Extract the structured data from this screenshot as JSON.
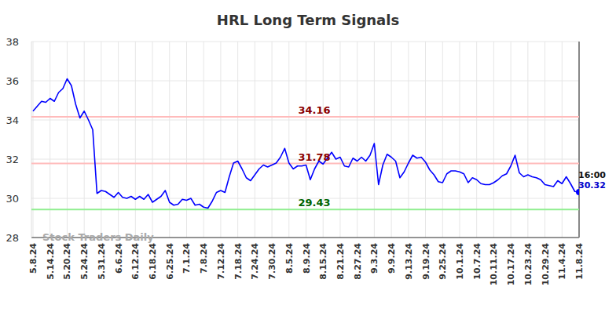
{
  "chart_data": {
    "type": "line",
    "title": "HRL Long Term Signals",
    "categories": [
      "5.8.24",
      null,
      null,
      null,
      "5.14.24",
      null,
      null,
      null,
      "5.20.24",
      null,
      null,
      null,
      "5.24.24",
      null,
      null,
      null,
      "5.31.24",
      null,
      null,
      null,
      "6.6.24",
      null,
      null,
      null,
      "6.12.24",
      null,
      null,
      null,
      "6.18.24",
      null,
      null,
      null,
      "6.25.24",
      null,
      null,
      null,
      "7.1.24",
      null,
      null,
      null,
      "7.8.24",
      null,
      null,
      null,
      "7.12.24",
      null,
      null,
      null,
      "7.18.24",
      null,
      null,
      null,
      "7.24.24",
      null,
      null,
      null,
      "7.30.24",
      null,
      null,
      null,
      "8.5.24",
      null,
      null,
      null,
      "8.9.24",
      null,
      null,
      null,
      "8.15.24",
      null,
      null,
      null,
      "8.21.24",
      null,
      null,
      null,
      "8.27.24",
      null,
      null,
      null,
      "9.3.24",
      null,
      null,
      null,
      "9.9.24",
      null,
      null,
      null,
      "9.13.24",
      null,
      null,
      null,
      "9.19.24",
      null,
      null,
      null,
      "9.25.24",
      null,
      null,
      null,
      "10.1.24",
      null,
      null,
      null,
      "10.7.24",
      null,
      null,
      null,
      "10.11.24",
      null,
      null,
      null,
      "10.17.24",
      null,
      null,
      null,
      "10.23.24",
      null,
      null,
      null,
      "10.29.24",
      null,
      null,
      null,
      "11.4.24",
      null,
      null,
      null,
      "11.8.24"
    ],
    "values": [
      34.45,
      34.7,
      34.95,
      34.9,
      35.1,
      34.95,
      35.4,
      35.6,
      36.1,
      35.75,
      34.8,
      34.1,
      34.45,
      34.0,
      33.5,
      30.25,
      30.4,
      30.35,
      30.2,
      30.05,
      30.3,
      30.05,
      30.0,
      30.1,
      29.95,
      30.1,
      29.95,
      30.2,
      29.8,
      29.95,
      30.1,
      30.4,
      29.8,
      29.65,
      29.7,
      29.95,
      29.9,
      30.0,
      29.65,
      29.7,
      29.55,
      29.5,
      29.85,
      30.3,
      30.4,
      30.3,
      31.1,
      31.8,
      31.9,
      31.5,
      31.05,
      30.9,
      31.2,
      31.5,
      31.7,
      31.6,
      31.7,
      31.8,
      32.1,
      32.55,
      31.8,
      31.5,
      31.65,
      31.65,
      31.7,
      30.95,
      31.5,
      31.9,
      31.75,
      32.05,
      32.35,
      32.0,
      32.1,
      31.65,
      31.6,
      32.05,
      31.9,
      32.1,
      31.9,
      32.2,
      32.8,
      30.7,
      31.7,
      32.25,
      32.1,
      31.9,
      31.05,
      31.35,
      31.8,
      32.2,
      32.05,
      32.1,
      31.85,
      31.45,
      31.2,
      30.85,
      30.8,
      31.25,
      31.4,
      31.4,
      31.35,
      31.25,
      30.8,
      31.05,
      30.95,
      30.75,
      30.7,
      30.7,
      30.8,
      30.95,
      31.15,
      31.25,
      31.65,
      32.2,
      31.3,
      31.1,
      31.2,
      31.1,
      31.05,
      30.95,
      30.7,
      30.65,
      30.6,
      30.9,
      30.75,
      31.1,
      30.75,
      30.35,
      30.32
    ],
    "color": "#0000ff",
    "ylim": [
      28,
      38
    ],
    "yticks": [
      28,
      30,
      32,
      34,
      36,
      38
    ],
    "grid": true,
    "reference_lines": [
      {
        "value": 34.16,
        "label": "34.16",
        "color": "#ffbbbb",
        "label_color": "#8b0000"
      },
      {
        "value": 31.78,
        "label": "31.78",
        "color": "#ffbbbb",
        "label_color": "#8b0000"
      },
      {
        "value": 29.43,
        "label": "29.43",
        "color": "#90ee90",
        "label_color": "#006400"
      }
    ],
    "last_point": {
      "time_label": "16:00",
      "value_label": "30.32"
    },
    "watermark": "Stock Traders Daily"
  }
}
